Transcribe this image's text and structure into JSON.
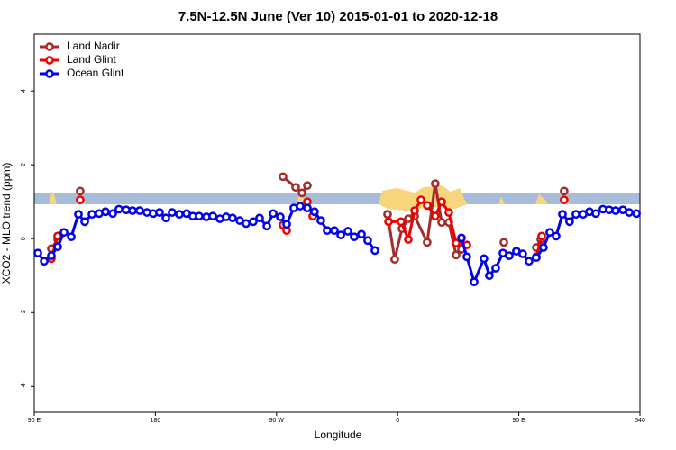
{
  "chart_data": {
    "type": "line",
    "title": "7.5N-12.5N June (Ver 10)   2015-01-01 to 2020-12-18",
    "x_label": "Longitude",
    "y_label": "XCO2 - MLO trend (ppm)",
    "xlim": [
      90,
      540
    ],
    "ylim": [
      -4.7,
      5.54
    ],
    "xticks": [
      {
        "value": 90,
        "label": "90 E"
      },
      180,
      {
        "value": 270,
        "label": "90 W"
      },
      {
        "value": 360,
        "label": "0"
      },
      {
        "value": 450,
        "label": "90 E"
      },
      540
    ],
    "yticks": [
      -4,
      -2,
      0,
      2,
      4
    ],
    "legend": "upper left",
    "series": [
      {
        "name": "Land Nadir",
        "color": "#a52a2a",
        "x": [
          102.7,
          107.4,
          null,
          124.1,
          null,
          274.8,
          284.2,
          288.9,
          292.9,
          null,
          352.5,
          357.8,
          363.2,
          367.9,
          372.6,
          381.9,
          387.9,
          392.7,
          398.0,
          403.4,
          407.4,
          null,
          438.9,
          null,
          463.0,
          466.3,
          null,
          483.7
        ],
        "values": [
          -0.27,
          -0.02,
          null,
          1.29,
          null,
          1.68,
          1.39,
          1.24,
          1.44,
          null,
          0.66,
          -0.56,
          0.27,
          0.54,
          0.61,
          -0.1,
          1.49,
          0.44,
          0.44,
          -0.44,
          -0.29,
          null,
          -0.1,
          null,
          -0.24,
          -0.02,
          null,
          1.29
        ]
      },
      {
        "name": "Land Glint",
        "color": "#ee0000",
        "x": [
          102.7,
          107.4,
          null,
          124.1,
          null,
          274.8,
          277.5,
          null,
          292.9,
          296.9,
          null,
          353.2,
          362.5,
          367.9,
          372.6,
          377.3,
          382.0,
          387.9,
          392.7,
          398.0,
          403.4,
          411.4,
          null,
          463.0,
          467.0,
          null,
          483.7
        ],
        "values": [
          -0.54,
          0.07,
          null,
          1.05,
          null,
          0.37,
          0.22,
          null,
          1.0,
          0.61,
          null,
          0.46,
          0.46,
          -0.02,
          0.76,
          1.05,
          0.9,
          0.61,
          1.0,
          0.71,
          -0.12,
          -0.17,
          null,
          -0.49,
          0.07,
          null,
          1.05
        ]
      },
      {
        "name": "Ocean Glint",
        "color": "#0000ee",
        "x": [
          92.7,
          97.4,
          102.7,
          107.4,
          112.1,
          117.5,
          122.8,
          127.5,
          132.9,
          138.2,
          142.9,
          148.3,
          152.9,
          158.3,
          163.0,
          168.3,
          173.7,
          178.4,
          183.1,
          187.8,
          192.4,
          197.8,
          203.2,
          207.8,
          212.5,
          217.9,
          222.6,
          227.9,
          232.6,
          237.3,
          242.7,
          247.4,
          252.7,
          257.4,
          262.8,
          267.5,
          272.8,
          277.5,
          282.8,
          287.5,
          292.9,
          298.2,
          302.9,
          307.6,
          313.0,
          317.7,
          323.0,
          327.7,
          333.1,
          337.7,
          343.1,
          null,
          407.4,
          411.4,
          416.8,
          424.1,
          428.1,
          432.8,
          438.2,
          442.9,
          448.2,
          452.9,
          457.6,
          463.0,
          468.3,
          473.0,
          477.7,
          482.4,
          487.7,
          492.4,
          497.8,
          502.5,
          507.2,
          512.5,
          517.2,
          521.9,
          527.3,
          532.0,
          537.4
        ],
        "values": [
          -0.39,
          -0.61,
          -0.46,
          -0.22,
          0.17,
          0.05,
          0.66,
          0.46,
          0.66,
          0.68,
          0.73,
          0.68,
          0.8,
          0.78,
          0.76,
          0.76,
          0.71,
          0.68,
          0.71,
          0.56,
          0.71,
          0.66,
          0.68,
          0.61,
          0.61,
          0.59,
          0.61,
          0.54,
          0.59,
          0.56,
          0.49,
          0.41,
          0.46,
          0.56,
          0.34,
          0.68,
          0.59,
          0.39,
          0.83,
          0.88,
          0.83,
          0.73,
          0.49,
          0.22,
          0.22,
          0.1,
          0.2,
          0.05,
          0.12,
          -0.05,
          -0.32,
          null,
          0.02,
          -0.49,
          -1.17,
          -0.54,
          -1.0,
          -0.8,
          -0.39,
          -0.46,
          -0.34,
          -0.41,
          -0.61,
          -0.51,
          -0.24,
          0.17,
          0.07,
          0.66,
          0.46,
          0.66,
          0.66,
          0.73,
          0.68,
          0.8,
          0.78,
          0.76,
          0.78,
          0.71,
          0.68
        ]
      }
    ]
  }
}
